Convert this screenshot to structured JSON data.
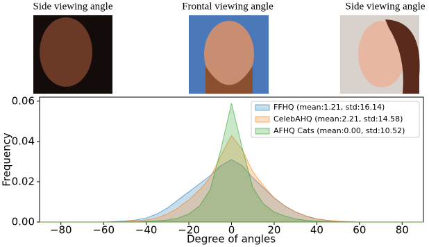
{
  "chart_data": {
    "type": "area",
    "annotations": [
      "Side viewing angle",
      "Frontal viewing angle",
      "Side viewing angle"
    ],
    "x_label": "Degree of angles",
    "y_label": "Frequency",
    "x": [
      -90,
      -85,
      -80,
      -75,
      -70,
      -65,
      -60,
      -55,
      -50,
      -45,
      -40,
      -35,
      -30,
      -25,
      -20,
      -15,
      -10,
      -5,
      0,
      5,
      10,
      15,
      20,
      25,
      30,
      35,
      40,
      45,
      50,
      55,
      60,
      65,
      70,
      75,
      80,
      85,
      90
    ],
    "series": [
      {
        "name": "FFHQ (mean:1.21, std:16.14)",
        "color": "#1f77b4",
        "values": [
          0,
          0,
          0,
          0,
          0,
          0,
          0,
          0.0002,
          0.0005,
          0.001,
          0.002,
          0.004,
          0.007,
          0.011,
          0.015,
          0.019,
          0.023,
          0.028,
          0.031,
          0.028,
          0.022,
          0.017,
          0.012,
          0.008,
          0.005,
          0.003,
          0.0015,
          0.0008,
          0.0003,
          0.0001,
          0,
          0,
          0,
          0,
          0,
          0,
          0
        ]
      },
      {
        "name": "CelebAHQ (mean:2.21, std:14.58)",
        "color": "#ff7f0e",
        "values": [
          0,
          0,
          0,
          0,
          0,
          0,
          0,
          0,
          0.0003,
          0.0006,
          0.001,
          0.002,
          0.004,
          0.007,
          0.011,
          0.016,
          0.022,
          0.033,
          0.043,
          0.036,
          0.025,
          0.018,
          0.012,
          0.008,
          0.005,
          0.003,
          0.0015,
          0.0008,
          0.0004,
          0.0002,
          0,
          0,
          0,
          0,
          0,
          0,
          0
        ]
      },
      {
        "name": "AFHQ Cats (mean:0.00, std:10.52)",
        "color": "#2ca02c",
        "values": [
          0,
          0,
          0,
          0,
          0,
          0,
          0,
          0,
          0,
          0,
          0.0003,
          0.0006,
          0.001,
          0.002,
          0.004,
          0.008,
          0.016,
          0.036,
          0.059,
          0.037,
          0.017,
          0.009,
          0.005,
          0.003,
          0.0015,
          0.0008,
          0.0004,
          0.0002,
          0,
          0,
          0,
          0,
          0,
          0,
          0,
          0,
          0
        ]
      }
    ],
    "xlim": [
      -90,
      90
    ],
    "ylim": [
      0,
      0.062
    ],
    "xticks": [
      {
        "value": -80,
        "label": "−80"
      },
      {
        "value": -60,
        "label": "−60"
      },
      {
        "value": -40,
        "label": "−40"
      },
      {
        "value": -20,
        "label": "−20"
      },
      0,
      20,
      40,
      60,
      80
    ],
    "yticks": [
      {
        "value": 0,
        "label": "0.00"
      },
      {
        "value": 0.02,
        "label": "0.02"
      },
      {
        "value": 0.04,
        "label": "0.04"
      },
      {
        "value": 0.06,
        "label": "0.06"
      }
    ],
    "legend": "upper right",
    "fill_opacity": 0.25
  }
}
